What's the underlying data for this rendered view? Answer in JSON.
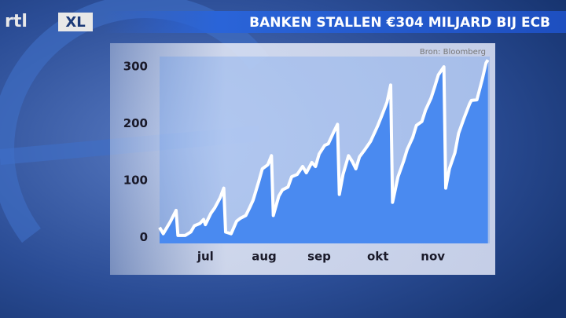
{
  "logo": {
    "left": "rtl",
    "right": "XL"
  },
  "chart_data": {
    "type": "area",
    "title": "BANKEN STALLEN €304 MILJARD BIJ ECB",
    "source": "Bron: Bloomberg",
    "x": [
      0,
      2,
      4,
      6,
      9,
      10,
      14,
      17,
      19,
      22,
      24,
      25,
      28,
      30,
      33,
      35,
      36,
      39,
      42,
      44,
      47,
      49,
      51,
      54,
      56,
      59,
      61,
      62,
      65,
      67,
      70,
      72,
      75,
      78,
      80,
      83,
      85,
      87,
      90,
      92,
      95,
      97,
      98,
      100,
      103,
      105,
      107,
      109,
      112,
      115,
      116,
      119,
      121,
      124,
      126,
      127,
      130,
      133,
      135,
      138,
      140,
      143,
      145,
      148,
      150,
      152,
      155,
      156,
      158,
      161,
      163,
      166,
      169,
      170,
      173,
      176,
      178,
      179
    ],
    "values": [
      18,
      7,
      18,
      29,
      48,
      4,
      4,
      10,
      21,
      25,
      32,
      23,
      43,
      52,
      70,
      87,
      10,
      7,
      29,
      34,
      39,
      52,
      66,
      98,
      121,
      128,
      144,
      39,
      73,
      84,
      89,
      107,
      111,
      125,
      114,
      132,
      125,
      147,
      162,
      165,
      186,
      199,
      76,
      111,
      144,
      134,
      121,
      142,
      155,
      169,
      176,
      197,
      213,
      238,
      268,
      62,
      107,
      134,
      155,
      176,
      197,
      204,
      224,
      245,
      265,
      286,
      300,
      87,
      121,
      149,
      183,
      210,
      235,
      241,
      242,
      279,
      307,
      312
    ],
    "color": "#4a8af0",
    "line_color": "#ffffff",
    "xlim": [
      0,
      180
    ],
    "xticks": [
      {
        "value": 25,
        "label": "jul"
      },
      {
        "value": 57,
        "label": "aug"
      },
      {
        "value": 87,
        "label": "sep"
      },
      {
        "value": 119,
        "label": "okt"
      },
      {
        "value": 149,
        "label": "nov"
      }
    ],
    "ylim": [
      -10,
      318
    ],
    "yticks": [
      0,
      100,
      200,
      300
    ]
  }
}
